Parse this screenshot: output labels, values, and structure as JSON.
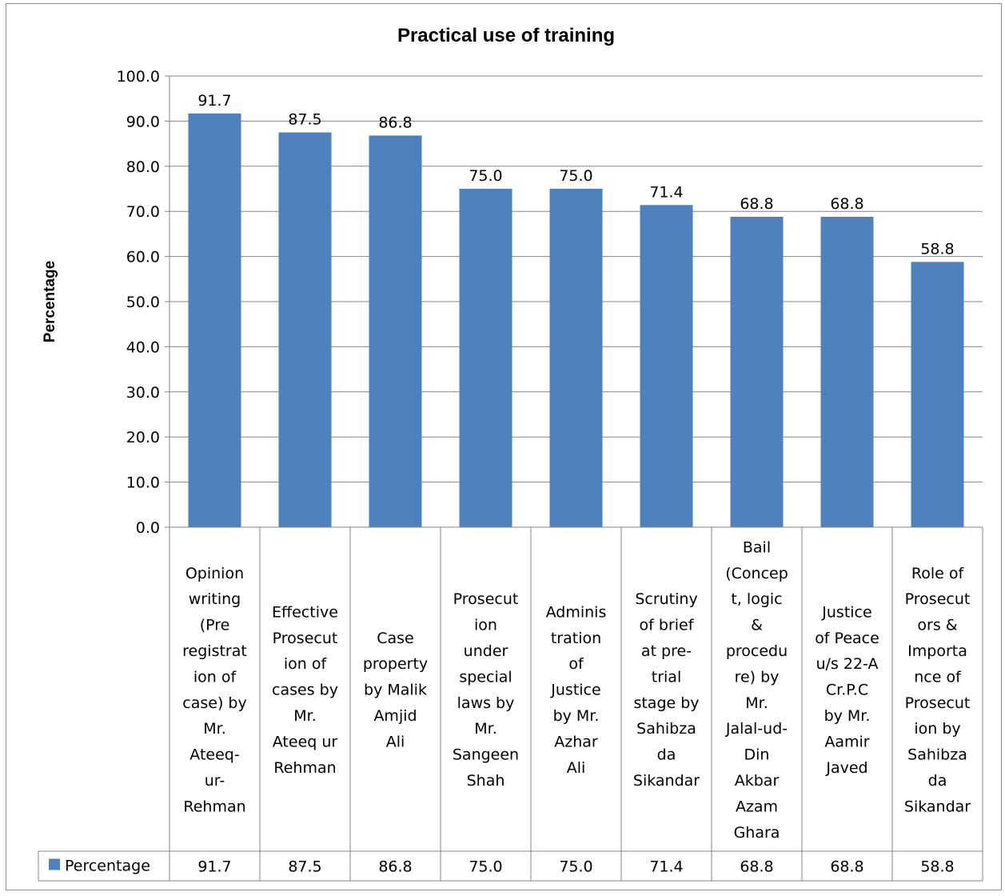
{
  "chart_data": {
    "type": "bar",
    "title": "Practical use of training",
    "xlabel": "",
    "ylabel": "Percentage",
    "ylim": [
      0,
      100
    ],
    "yticks": [
      "0.0",
      "10.0",
      "20.0",
      "30.0",
      "40.0",
      "50.0",
      "60.0",
      "70.0",
      "80.0",
      "90.0",
      "100.0"
    ],
    "grid": true,
    "color": "#4f81bd",
    "categories": [
      [
        "Opinion",
        "writing",
        "(Pre",
        "registrat",
        "ion of",
        "case) by",
        "Mr.",
        "Ateeq-",
        "ur-",
        "Rehman"
      ],
      [
        "Effective",
        "Prosecut",
        "ion of",
        "cases by",
        "Mr.",
        "Ateeq ur",
        "Rehman"
      ],
      [
        "Case",
        "property",
        "by Malik",
        "Amjid",
        "Ali"
      ],
      [
        "Prosecut",
        "ion",
        "under",
        "special",
        "laws by",
        "Mr.",
        "Sangeen",
        "Shah"
      ],
      [
        "Adminis",
        "tration",
        "of",
        "Justice",
        "by Mr.",
        "Azhar",
        "Ali"
      ],
      [
        "Scrutiny",
        "of brief",
        "at pre-",
        "trial",
        "stage by",
        "Sahibza",
        "da",
        "Sikandar"
      ],
      [
        "Bail",
        "(Concep",
        "t, logic",
        "&",
        "procedu",
        "re) by",
        "Mr.",
        "Jalal-ud-",
        "Din",
        "Akbar",
        "Azam",
        "Ghara"
      ],
      [
        "Justice",
        "of Peace",
        "u/s 22-A",
        "Cr.P.C",
        "by Mr.",
        "Aamir",
        "Javed"
      ],
      [
        "Role of",
        "Prosecut",
        "ors &",
        "Importa",
        "nce of",
        "Prosecut",
        "ion by",
        "Sahibza",
        "da",
        "Sikandar"
      ]
    ],
    "series": [
      {
        "name": "Percentage",
        "values": [
          91.7,
          87.5,
          86.8,
          75.0,
          75.0,
          71.4,
          68.8,
          68.8,
          58.8
        ],
        "labels": [
          "91.7",
          "87.5",
          "86.8",
          "75.0",
          "75.0",
          "71.4",
          "68.8",
          "68.8",
          "58.8"
        ]
      }
    ],
    "legend": "data-table"
  }
}
